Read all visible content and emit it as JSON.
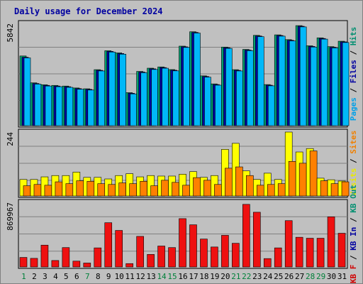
{
  "chart_data": [
    {
      "type": "bar",
      "panel": "top",
      "title": "Daily usage for December 2024",
      "categories": [
        "1",
        "2",
        "3",
        "4",
        "5",
        "6",
        "7",
        "8",
        "9",
        "10",
        "11",
        "12",
        "13",
        "14",
        "15",
        "16",
        "17",
        "18",
        "19",
        "20",
        "21",
        "22",
        "23",
        "24",
        "25",
        "26",
        "27",
        "28",
        "29",
        "30",
        "31"
      ],
      "weekend_days": [
        "1",
        "7",
        "14",
        "15",
        "21",
        "22",
        "28",
        "29"
      ],
      "ylabel_max": "5842",
      "right_axis": [
        "Pages",
        "Files",
        "Hits"
      ],
      "right_axis_colors": [
        "#00a0e8",
        "#0000a0",
        "#008f70"
      ],
      "ylim": [
        0,
        5842
      ],
      "series": [
        {
          "name": "Hits",
          "color": "#00a070",
          "values": [
            3983,
            2449,
            2340,
            2302,
            2264,
            2155,
            2109,
            3201,
            4283,
            4160,
            1888,
            3101,
            3286,
            3358,
            3206,
            4545,
            5367,
            2847,
            2388,
            4492,
            3201,
            4358,
            5161,
            2349,
            5190,
            4917,
            5718,
            4567,
            5020,
            4517,
            4826
          ]
        },
        {
          "name": "Files",
          "color": "#0000a0",
          "values": [
            3911,
            2412,
            2303,
            2265,
            2227,
            2118,
            2073,
            3164,
            4246,
            4123,
            1852,
            3064,
            3249,
            3321,
            3169,
            4508,
            5330,
            2811,
            2351,
            4455,
            3164,
            4321,
            5124,
            2313,
            5153,
            4880,
            5681,
            4530,
            4983,
            4480,
            4789
          ]
        },
        {
          "name": "Pages",
          "color": "#00b8f8",
          "values": [
            3874,
            2376,
            2266,
            2228,
            2191,
            2082,
            2037,
            3127,
            4209,
            4086,
            1816,
            3027,
            3212,
            3284,
            3132,
            4471,
            5293,
            2774,
            2314,
            4418,
            3127,
            4285,
            5087,
            2276,
            5116,
            4843,
            5644,
            4493,
            4946,
            4443,
            4752
          ]
        }
      ]
    },
    {
      "type": "bar",
      "panel": "middle",
      "ylabel_max": "244",
      "right_axis": [
        "Visits",
        "Sites"
      ],
      "right_axis_colors": [
        "#e8e800",
        "#f08000"
      ],
      "ylim": [
        0,
        244
      ],
      "series": [
        {
          "name": "Visits",
          "color": "#ffff00",
          "values": [
            63,
            63,
            73,
            78,
            78,
            91,
            71,
            71,
            65,
            78,
            85,
            73,
            78,
            76,
            76,
            83,
            93,
            71,
            78,
            178,
            201,
            96,
            63,
            87,
            63,
            244,
            168,
            181,
            68,
            62,
            57
          ]
        },
        {
          "name": "Sites",
          "color": "#ff8000",
          "values": [
            39,
            44,
            41,
            54,
            47,
            58,
            56,
            47,
            44,
            50,
            47,
            56,
            39,
            60,
            52,
            41,
            70,
            60,
            44,
            106,
            111,
            78,
            41,
            44,
            47,
            132,
            125,
            172,
            58,
            47,
            54
          ]
        }
      ]
    },
    {
      "type": "bar",
      "panel": "bottom",
      "ylabel_max": "869967",
      "right_axis": [
        "KB F",
        "KB In",
        "KB Out"
      ],
      "right_axis_colors": [
        "#d00000",
        "#0000a0",
        "#008f70"
      ],
      "ylim": [
        0,
        869967
      ],
      "series": [
        {
          "name": "KB F",
          "color": "#ee1010",
          "values": [
            128413,
            115983,
            294000,
            86983,
            261000,
            78700,
            53000,
            257000,
            596000,
            492000,
            45500,
            412000,
            169000,
            282000,
            261000,
            651000,
            568000,
            376000,
            269000,
            426000,
            319000,
            843000,
            737000,
            113000,
            257000,
            624000,
            400000,
            387000,
            387000,
            675000,
            454000
          ]
        }
      ]
    }
  ]
}
